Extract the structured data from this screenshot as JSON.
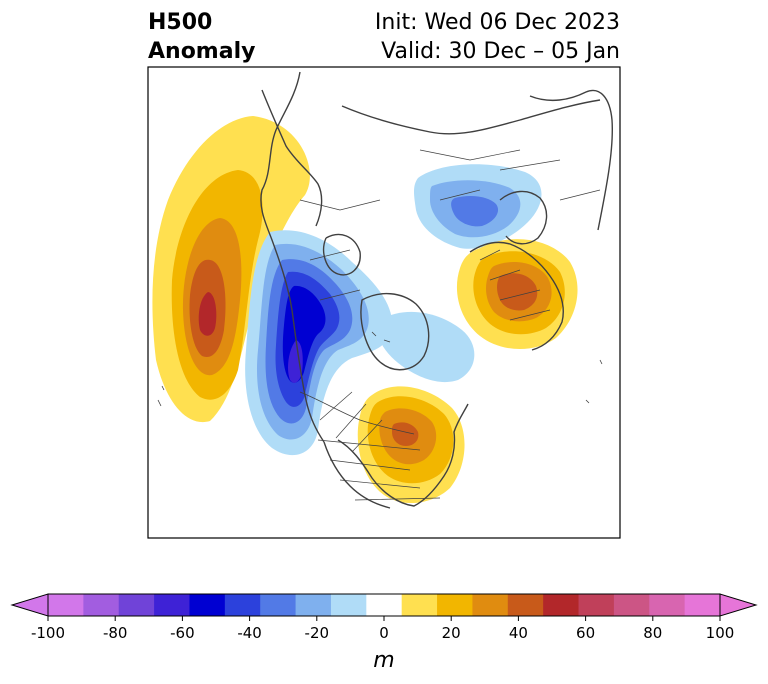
{
  "title": {
    "left_line1": "H500",
    "left_line2": "Anomaly",
    "right_line1": "Init: Wed 06 Dec 2023",
    "right_line2": "Valid: 30 Dec – 05 Jan"
  },
  "colorbar": {
    "label": "m",
    "ticks": [
      "-100",
      "-80",
      "-60",
      "-40",
      "-20",
      "0",
      "20",
      "40",
      "60",
      "80",
      "100"
    ],
    "levels": [
      -100,
      -90,
      -80,
      -70,
      -60,
      -50,
      -40,
      -30,
      -20,
      -10,
      10,
      20,
      30,
      40,
      50,
      60,
      70,
      80,
      90,
      100
    ],
    "colors": [
      "#d277ea",
      "#a25de0",
      "#7043d8",
      "#3e22d6",
      "#0000d2",
      "#2c41dc",
      "#527ae6",
      "#7fb0ee",
      "#b0dcf7",
      "#ffffff",
      "#ffe050",
      "#f2b600",
      "#e08c10",
      "#c85a1a",
      "#b2272a",
      "#c0405a",
      "#cc5585",
      "#d865b0",
      "#e675d8"
    ],
    "extend": "both"
  },
  "anomalies": [
    {
      "name": "pacific-ridge",
      "sign": "positive",
      "peak": 60
    },
    {
      "name": "western-trough",
      "sign": "negative",
      "peak": -60
    },
    {
      "name": "eastern-us-ridge",
      "sign": "positive",
      "peak": 40
    },
    {
      "name": "europe-ridge",
      "sign": "positive",
      "peak": 50
    },
    {
      "name": "siberia-trough",
      "sign": "negative",
      "peak": -30
    },
    {
      "name": "greenland-trough",
      "sign": "negative",
      "peak": -20
    }
  ]
}
